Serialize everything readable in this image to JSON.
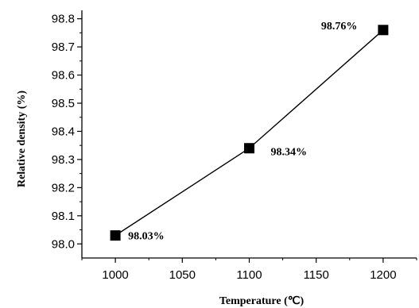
{
  "chart_data": {
    "type": "line",
    "title": "",
    "xlabel": "Temperature (℃)",
    "ylabel": "Relative density (%)",
    "x": [
      1000,
      1100,
      1200
    ],
    "series": [
      {
        "values": [
          98.03,
          98.34,
          98.76
        ],
        "data_labels": [
          "98.03%",
          "98.34%",
          "98.76%"
        ]
      }
    ],
    "xlim": [
      975,
      1225
    ],
    "ylim": [
      97.95,
      98.83
    ],
    "xticks": [
      1000,
      1050,
      1100,
      1150,
      1200
    ],
    "xtick_labels": [
      "1000",
      "1050",
      "1100",
      "1150",
      "1200"
    ],
    "yticks": [
      98.0,
      98.1,
      98.2,
      98.3,
      98.4,
      98.5,
      98.6,
      98.7,
      98.8
    ],
    "ytick_labels": [
      "98.0",
      "98.1",
      "98.2",
      "98.3",
      "98.4",
      "98.5",
      "98.6",
      "98.7",
      "98.8"
    ],
    "grid": false,
    "legend": "none",
    "marker": "square",
    "colors": {
      "line": "#000000",
      "marker": "#000000",
      "axis": "#000000"
    }
  }
}
